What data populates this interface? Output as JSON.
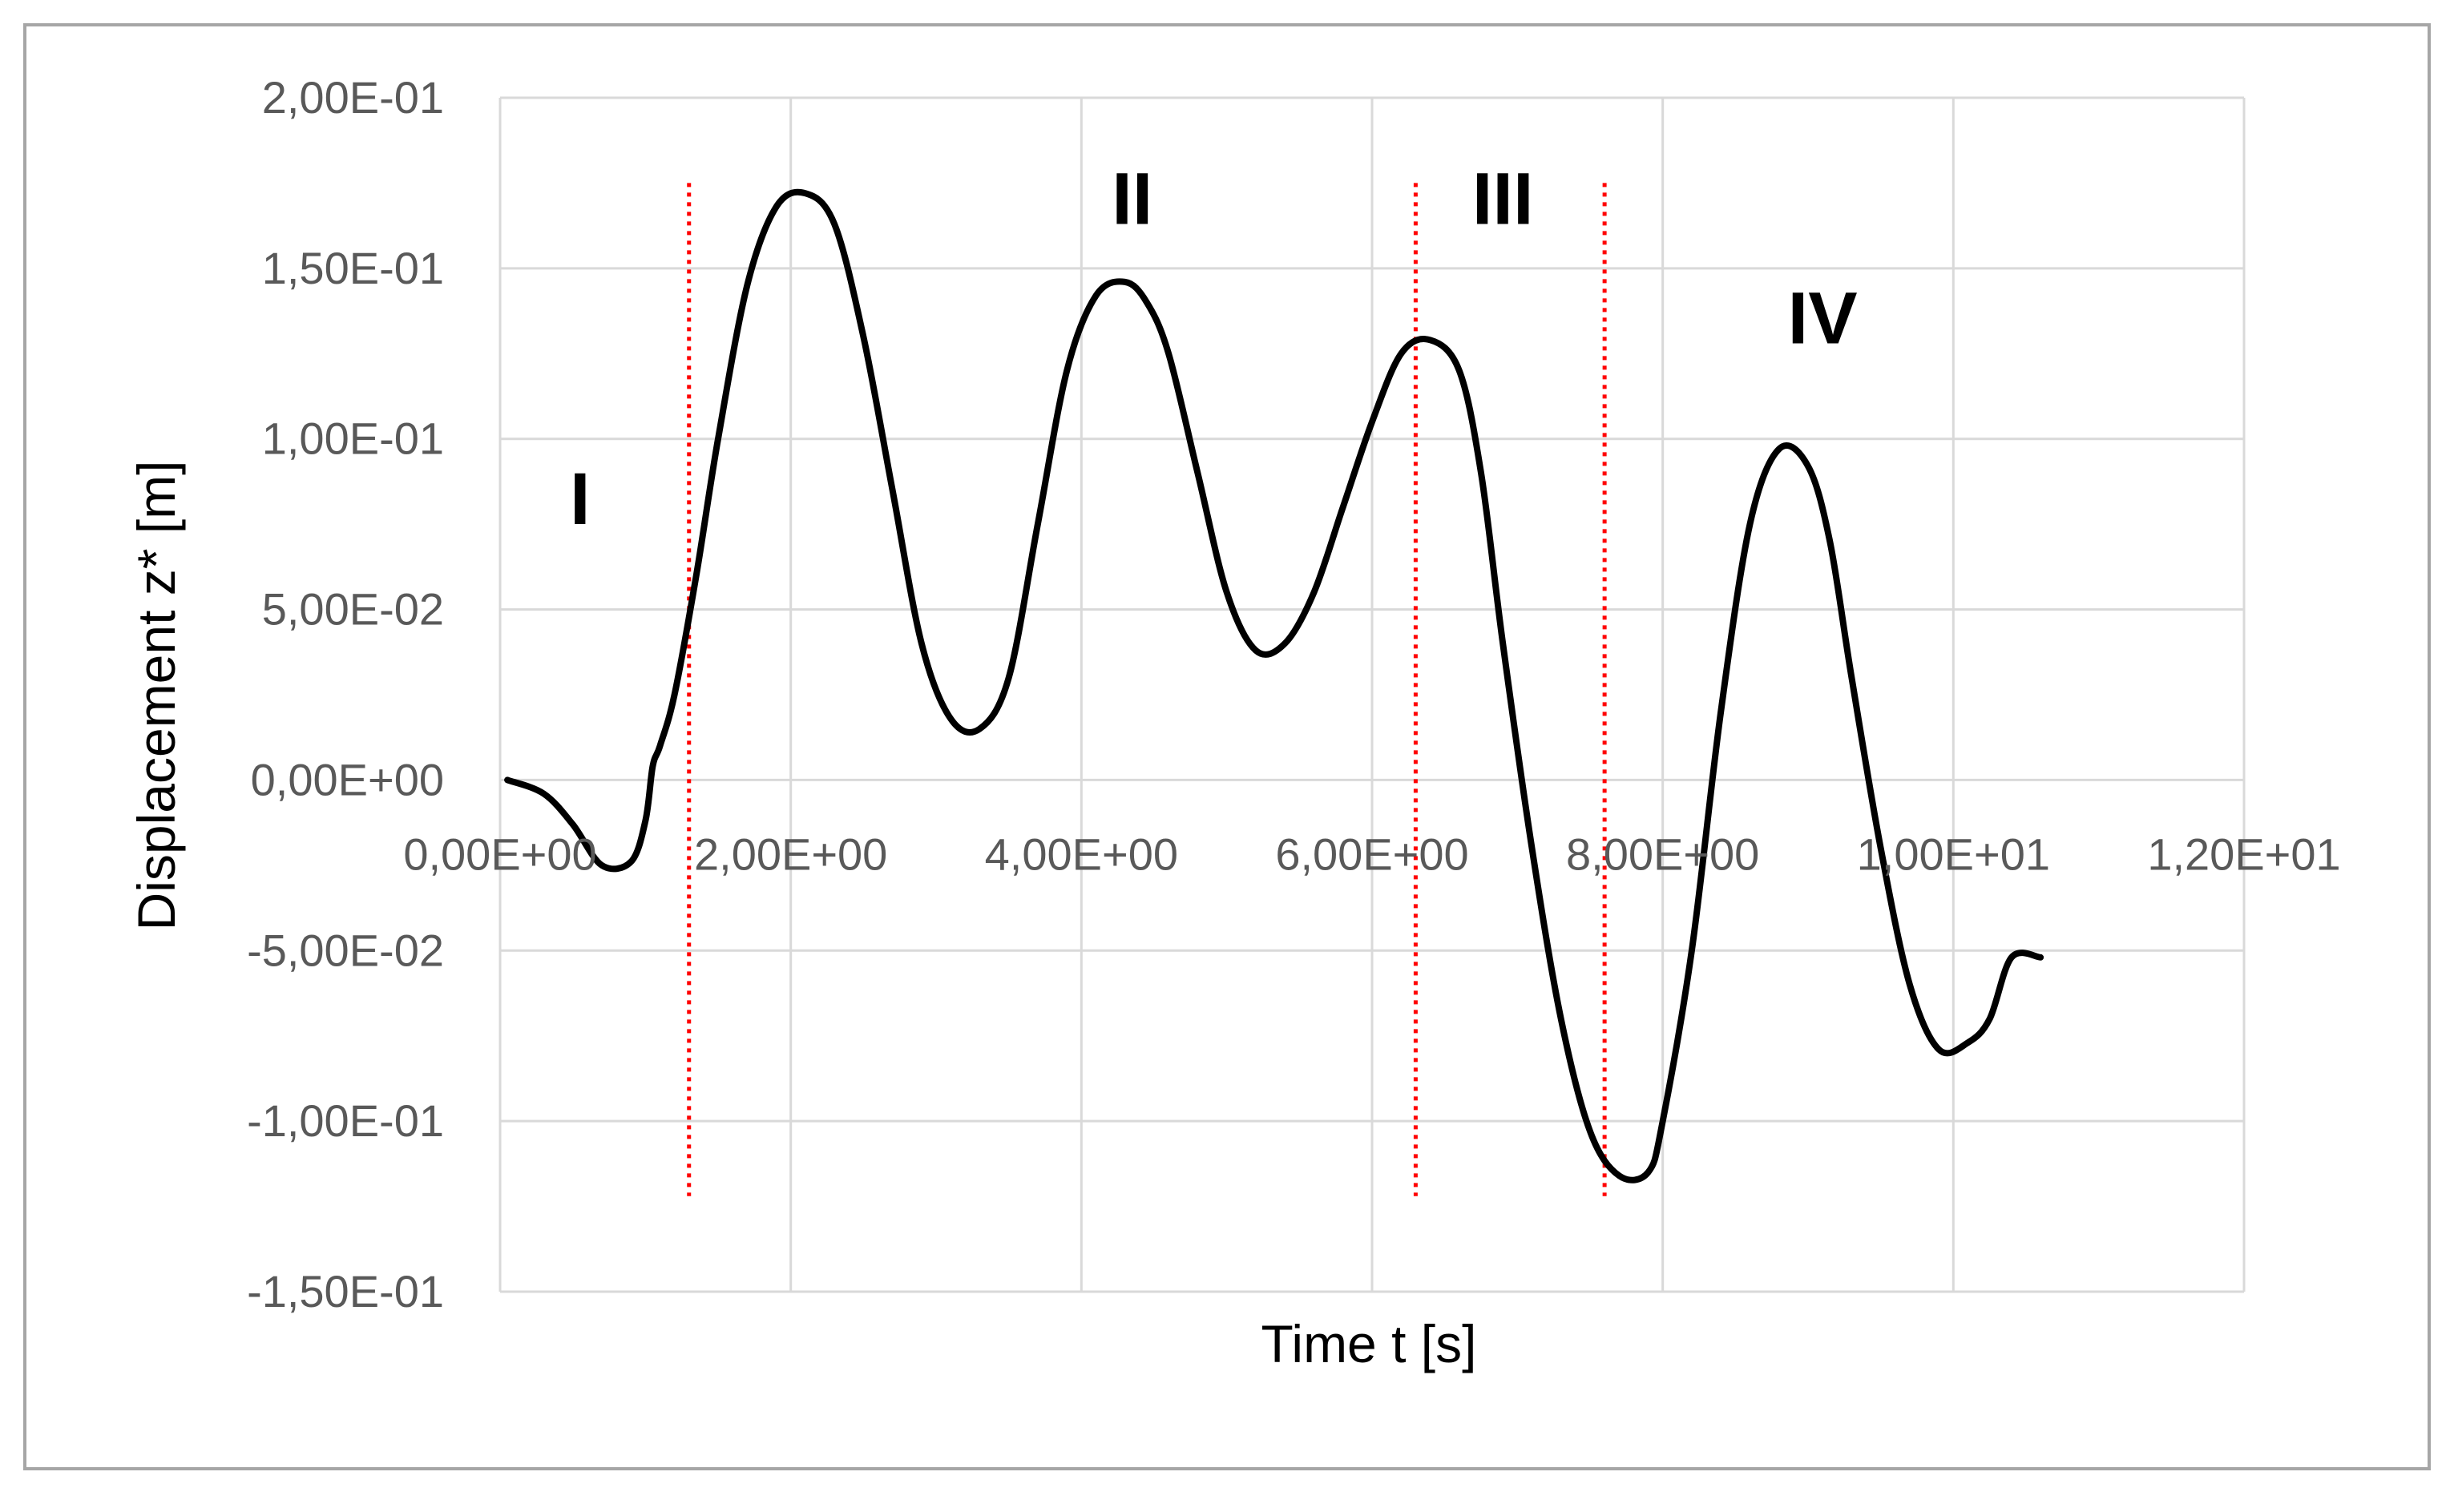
{
  "chart_data": {
    "type": "line",
    "title": "",
    "xlabel": "Time t [s]",
    "ylabel": "Displacement z* [m]",
    "xlim": [
      0,
      12
    ],
    "ylim": [
      -0.15,
      0.2
    ],
    "x_ticks": [
      0,
      2,
      4,
      6,
      8,
      10,
      12
    ],
    "y_ticks": [
      -0.15,
      -0.1,
      -0.05,
      0,
      0.05,
      0.1,
      0.15,
      0.2
    ],
    "x_tick_labels": [
      "0,00E+00",
      "2,00E+00",
      "4,00E+00",
      "6,00E+00",
      "8,00E+00",
      "1,00E+01",
      "1,20E+01"
    ],
    "y_tick_labels": [
      "-1,50E-01",
      "-1,00E-01",
      "-5,00E-02",
      "0,00E+00",
      "5,00E-02",
      "1,00E-01",
      "1,50E-01",
      "2,00E-01"
    ],
    "grid": true,
    "legend": "none",
    "series": [
      {
        "color": "#000000",
        "x": [
          0.05,
          0.3,
          0.5,
          0.7,
          0.9,
          1.0,
          1.05,
          1.1,
          1.2,
          1.35,
          1.5,
          1.7,
          1.9,
          2.1,
          2.3,
          2.5,
          2.7,
          2.9,
          3.1,
          3.3,
          3.5,
          3.7,
          3.9,
          4.1,
          4.3,
          4.45,
          4.6,
          4.8,
          5.0,
          5.2,
          5.4,
          5.6,
          5.8,
          6.0,
          6.2,
          6.4,
          6.6,
          6.75,
          6.9,
          7.1,
          7.3,
          7.5,
          7.7,
          7.9,
          8.0,
          8.2,
          8.4,
          8.6,
          8.8,
          9.0,
          9.15,
          9.3,
          9.5,
          9.7,
          9.9,
          10.1,
          10.25,
          10.4,
          10.6
        ],
        "y": [
          0.0,
          -0.004,
          -0.013,
          -0.025,
          -0.024,
          -0.012,
          0.004,
          0.01,
          0.025,
          0.06,
          0.1,
          0.145,
          0.168,
          0.172,
          0.163,
          0.13,
          0.085,
          0.04,
          0.018,
          0.015,
          0.03,
          0.075,
          0.12,
          0.142,
          0.146,
          0.14,
          0.125,
          0.09,
          0.055,
          0.038,
          0.04,
          0.055,
          0.08,
          0.105,
          0.125,
          0.129,
          0.12,
          0.09,
          0.04,
          -0.02,
          -0.07,
          -0.103,
          -0.116,
          -0.115,
          -0.1,
          -0.05,
          0.02,
          0.075,
          0.097,
          0.092,
          0.07,
          0.03,
          -0.02,
          -0.06,
          -0.079,
          -0.077,
          -0.07,
          -0.052,
          -0.052
        ]
      }
    ],
    "vertical_markers": [
      {
        "x": 1.3,
        "color": "#ff0000"
      },
      {
        "x": 6.3,
        "color": "#ff0000"
      },
      {
        "x": 7.6,
        "color": "#ff0000"
      }
    ],
    "annotations": [
      {
        "text": "I",
        "x": 0.55,
        "y": 0.075
      },
      {
        "text": "II",
        "x": 4.35,
        "y": 0.163
      },
      {
        "text": "III",
        "x": 6.9,
        "y": 0.163
      },
      {
        "text": "IV",
        "x": 9.1,
        "y": 0.128
      }
    ]
  },
  "colors": {
    "gridline": "#d9d9d9",
    "frame": "#a6a6a6",
    "curve": "#000000",
    "marker": "#ff0000"
  }
}
